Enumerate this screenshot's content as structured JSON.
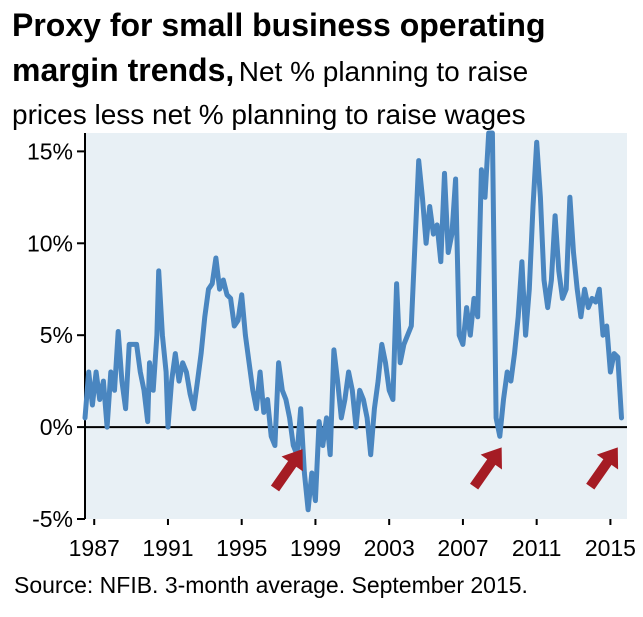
{
  "title_bold_1": "Proxy for small business operating",
  "title_bold_2": "margin trends,",
  "subtitle_1": "Net % planning to raise",
  "subtitle_2": "prices less net % planning to raise wages",
  "source": "Source: NFIB. 3-month average. September  2015.",
  "colors": {
    "line": "#4a86c0",
    "plot_bg": "#e8f0f5",
    "arrow": "#a51c24",
    "axis": "#000000"
  },
  "chart_data": {
    "type": "line",
    "title": "Proxy for small business operating margin trends, Net % planning to raise prices less net % planning to raise wages",
    "xlabel": "",
    "ylabel": "",
    "xlim": [
      1986.5,
      2015.9
    ],
    "ylim": [
      -5,
      16
    ],
    "yticks": [
      -5,
      0,
      5,
      10,
      15
    ],
    "ytick_labels": [
      "-5%",
      "0%",
      "5%",
      "10%",
      "15%"
    ],
    "xticks": [
      1987,
      1991,
      1995,
      1999,
      2003,
      2007,
      2011,
      2015
    ],
    "xtick_labels": [
      "1987",
      "1991",
      "1995",
      "1999",
      "2003",
      "2007",
      "2011",
      "2015"
    ],
    "grid": false,
    "legend": "none",
    "series": [
      {
        "values": [
          [
            1986.5,
            0.5
          ],
          [
            1986.7,
            3.0
          ],
          [
            1986.9,
            1.2
          ],
          [
            1987.1,
            3.0
          ],
          [
            1987.3,
            1.5
          ],
          [
            1987.5,
            2.5
          ],
          [
            1987.7,
            0.0
          ],
          [
            1987.9,
            3.0
          ],
          [
            1988.1,
            2.0
          ],
          [
            1988.3,
            5.2
          ],
          [
            1988.5,
            2.5
          ],
          [
            1988.7,
            1.0
          ],
          [
            1988.9,
            4.5
          ],
          [
            1989.1,
            4.5
          ],
          [
            1989.3,
            4.5
          ],
          [
            1989.5,
            3.0
          ],
          [
            1989.7,
            2.0
          ],
          [
            1989.9,
            0.3
          ],
          [
            1990.0,
            3.5
          ],
          [
            1990.2,
            2.0
          ],
          [
            1990.4,
            5.0
          ],
          [
            1990.5,
            8.5
          ],
          [
            1990.7,
            5.0
          ],
          [
            1990.9,
            3.0
          ],
          [
            1991.0,
            0.0
          ],
          [
            1991.2,
            2.5
          ],
          [
            1991.4,
            4.0
          ],
          [
            1991.6,
            2.5
          ],
          [
            1991.8,
            3.5
          ],
          [
            1992.0,
            3.0
          ],
          [
            1992.2,
            1.8
          ],
          [
            1992.4,
            1.0
          ],
          [
            1992.6,
            2.5
          ],
          [
            1992.8,
            4.0
          ],
          [
            1993.0,
            6.0
          ],
          [
            1993.2,
            7.5
          ],
          [
            1993.4,
            7.8
          ],
          [
            1993.6,
            9.2
          ],
          [
            1993.8,
            7.5
          ],
          [
            1994.0,
            8.0
          ],
          [
            1994.2,
            7.2
          ],
          [
            1994.4,
            7.0
          ],
          [
            1994.6,
            5.5
          ],
          [
            1994.8,
            5.8
          ],
          [
            1995.0,
            7.2
          ],
          [
            1995.2,
            5.0
          ],
          [
            1995.4,
            3.5
          ],
          [
            1995.6,
            2.0
          ],
          [
            1995.8,
            1.0
          ],
          [
            1996.0,
            3.0
          ],
          [
            1996.2,
            0.8
          ],
          [
            1996.4,
            1.5
          ],
          [
            1996.6,
            -0.5
          ],
          [
            1996.8,
            -1.0
          ],
          [
            1997.0,
            3.5
          ],
          [
            1997.2,
            2.0
          ],
          [
            1997.4,
            1.5
          ],
          [
            1997.6,
            0.5
          ],
          [
            1997.8,
            -1.0
          ],
          [
            1998.0,
            -1.5
          ],
          [
            1998.2,
            1.0
          ],
          [
            1998.4,
            -2.5
          ],
          [
            1998.6,
            -4.5
          ],
          [
            1998.8,
            -2.5
          ],
          [
            1999.0,
            -4.0
          ],
          [
            1999.2,
            0.3
          ],
          [
            1999.4,
            -1.0
          ],
          [
            1999.6,
            0.5
          ],
          [
            1999.8,
            -1.5
          ],
          [
            2000.0,
            4.2
          ],
          [
            2000.2,
            2.5
          ],
          [
            2000.4,
            0.5
          ],
          [
            2000.6,
            1.5
          ],
          [
            2000.8,
            3.0
          ],
          [
            2001.0,
            2.0
          ],
          [
            2001.2,
            0.0
          ],
          [
            2001.4,
            2.0
          ],
          [
            2001.6,
            1.5
          ],
          [
            2001.8,
            0.5
          ],
          [
            2002.0,
            -1.5
          ],
          [
            2002.2,
            1.0
          ],
          [
            2002.4,
            2.5
          ],
          [
            2002.6,
            4.5
          ],
          [
            2002.8,
            3.5
          ],
          [
            2003.0,
            2.0
          ],
          [
            2003.2,
            1.5
          ],
          [
            2003.4,
            7.8
          ],
          [
            2003.6,
            3.5
          ],
          [
            2003.8,
            4.5
          ],
          [
            2004.0,
            5.0
          ],
          [
            2004.2,
            5.5
          ],
          [
            2004.4,
            10.0
          ],
          [
            2004.6,
            14.5
          ],
          [
            2004.8,
            12.5
          ],
          [
            2005.0,
            10.0
          ],
          [
            2005.2,
            12.0
          ],
          [
            2005.4,
            10.5
          ],
          [
            2005.6,
            11.0
          ],
          [
            2005.8,
            9.0
          ],
          [
            2006.0,
            13.8
          ],
          [
            2006.2,
            9.5
          ],
          [
            2006.4,
            10.5
          ],
          [
            2006.6,
            13.5
          ],
          [
            2006.8,
            5.0
          ],
          [
            2007.0,
            4.5
          ],
          [
            2007.2,
            6.5
          ],
          [
            2007.4,
            5.0
          ],
          [
            2007.6,
            7.0
          ],
          [
            2007.8,
            6.0
          ],
          [
            2008.0,
            14.0
          ],
          [
            2008.2,
            12.5
          ],
          [
            2008.4,
            16.0
          ],
          [
            2008.6,
            16.0
          ],
          [
            2008.8,
            0.5
          ],
          [
            2009.0,
            -0.5
          ],
          [
            2009.2,
            1.5
          ],
          [
            2009.4,
            3.0
          ],
          [
            2009.6,
            2.5
          ],
          [
            2009.8,
            4.0
          ],
          [
            2010.0,
            6.0
          ],
          [
            2010.2,
            9.0
          ],
          [
            2010.4,
            5.0
          ],
          [
            2010.6,
            7.5
          ],
          [
            2010.8,
            12.0
          ],
          [
            2011.0,
            15.5
          ],
          [
            2011.2,
            12.5
          ],
          [
            2011.4,
            8.0
          ],
          [
            2011.6,
            6.5
          ],
          [
            2011.8,
            8.0
          ],
          [
            2012.0,
            11.5
          ],
          [
            2012.2,
            8.5
          ],
          [
            2012.4,
            7.0
          ],
          [
            2012.6,
            7.5
          ],
          [
            2012.8,
            12.5
          ],
          [
            2013.0,
            9.5
          ],
          [
            2013.2,
            7.5
          ],
          [
            2013.4,
            6.0
          ],
          [
            2013.6,
            7.5
          ],
          [
            2013.8,
            6.5
          ],
          [
            2014.0,
            7.0
          ],
          [
            2014.2,
            6.8
          ],
          [
            2014.4,
            7.5
          ],
          [
            2014.6,
            5.0
          ],
          [
            2014.8,
            5.5
          ],
          [
            2015.0,
            3.0
          ],
          [
            2015.2,
            4.0
          ],
          [
            2015.4,
            3.8
          ],
          [
            2015.6,
            0.5
          ]
        ]
      }
    ],
    "annotations": [
      "arrow-1998",
      "arrow-2009",
      "arrow-2015"
    ]
  }
}
